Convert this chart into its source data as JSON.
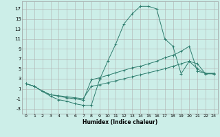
{
  "title": "",
  "xlabel": "Humidex (Indice chaleur)",
  "bg_color": "#cceee8",
  "grid_color": "#b0b0b0",
  "line_color": "#2e7d6e",
  "xlim": [
    -0.5,
    23.5
  ],
  "ylim": [
    -4,
    18.5
  ],
  "xticks": [
    0,
    1,
    2,
    3,
    4,
    5,
    6,
    7,
    8,
    9,
    10,
    11,
    12,
    13,
    14,
    15,
    16,
    17,
    18,
    19,
    20,
    21,
    22,
    23
  ],
  "yticks": [
    -3,
    -1,
    1,
    3,
    5,
    7,
    9,
    11,
    13,
    15,
    17
  ],
  "line1_x": [
    0,
    1,
    2,
    3,
    4,
    5,
    6,
    7,
    8,
    9,
    10,
    11,
    12,
    13,
    14,
    15,
    16,
    17,
    18,
    19,
    20,
    21,
    22,
    23
  ],
  "line1_y": [
    2.0,
    1.5,
    0.5,
    -0.5,
    -1.2,
    -1.5,
    -2.0,
    -2.3,
    -2.3,
    2.8,
    6.5,
    10.0,
    14.0,
    16.0,
    17.5,
    17.5,
    17.0,
    11.0,
    9.5,
    4.0,
    6.5,
    5.0,
    4.0,
    4.0
  ],
  "line2_x": [
    0,
    1,
    2,
    3,
    4,
    5,
    6,
    7,
    8,
    9,
    10,
    11,
    12,
    13,
    14,
    15,
    16,
    17,
    18,
    19,
    20,
    21,
    22,
    23
  ],
  "line2_y": [
    2.0,
    1.5,
    0.5,
    -0.2,
    -0.5,
    -0.8,
    -1.0,
    -1.3,
    2.8,
    3.2,
    3.7,
    4.2,
    4.7,
    5.2,
    5.5,
    6.0,
    6.5,
    7.2,
    7.7,
    8.5,
    9.5,
    4.5,
    4.1,
    4.1
  ],
  "line3_x": [
    0,
    1,
    2,
    3,
    4,
    5,
    6,
    7,
    8,
    9,
    10,
    11,
    12,
    13,
    14,
    15,
    16,
    17,
    18,
    19,
    20,
    21,
    22,
    23
  ],
  "line3_y": [
    2.0,
    1.5,
    0.5,
    -0.2,
    -0.4,
    -0.6,
    -0.8,
    -1.0,
    1.5,
    1.8,
    2.2,
    2.6,
    3.0,
    3.4,
    3.8,
    4.2,
    4.6,
    5.0,
    5.5,
    6.0,
    6.5,
    6.0,
    4.0,
    4.0
  ]
}
